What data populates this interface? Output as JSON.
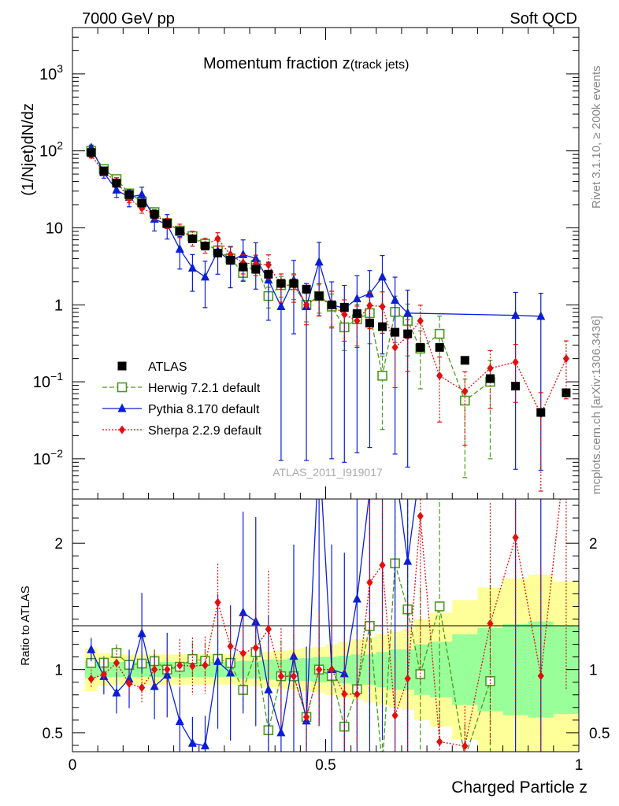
{
  "header": {
    "left": "7000 GeV pp",
    "right": "Soft QCD"
  },
  "side": {
    "rivet": "Rivet 3.1.10, ≥ 200k events",
    "mcplots": "mcplots.cern.ch [arXiv:1306.3436]"
  },
  "chart_data": {
    "type": "scatter",
    "title_main": "Momentum fraction ",
    "title_var": "z",
    "title_sub": "(track jets)",
    "analysis_id": "ATLAS_2011_I919017",
    "ylabel": "(1/Njet)dN/dz",
    "ratio_ylabel": "Ratio to ATLAS",
    "xlabel": "Charged Particle z",
    "xlim": [
      0,
      1
    ],
    "ylim_log": [
      0.003,
      4000
    ],
    "ratio_ylim": [
      0.35,
      2.35
    ],
    "x_ticks": [
      {
        "v": 0,
        "l": "0"
      },
      {
        "v": 0.5,
        "l": "0.5"
      },
      {
        "v": 1,
        "l": "1"
      }
    ],
    "y_ticks": [
      {
        "v": 0.01,
        "b": "10",
        "e": "−2"
      },
      {
        "v": 0.1,
        "b": "10",
        "e": "−1"
      },
      {
        "v": 1,
        "b": "1",
        "e": ""
      },
      {
        "v": 10,
        "b": "10",
        "e": ""
      },
      {
        "v": 100,
        "b": "10",
        "e": "2"
      },
      {
        "v": 1000,
        "b": "10",
        "e": "3"
      }
    ],
    "ratio_ticks": [
      {
        "v": 0.5,
        "l": "0.5"
      },
      {
        "v": 1,
        "l": "1"
      },
      {
        "v": 2,
        "l": "2"
      }
    ],
    "atlas": {
      "name": "ATLAS",
      "x": [
        0.037,
        0.062,
        0.087,
        0.112,
        0.137,
        0.162,
        0.187,
        0.212,
        0.237,
        0.262,
        0.287,
        0.312,
        0.337,
        0.362,
        0.387,
        0.412,
        0.437,
        0.462,
        0.487,
        0.512,
        0.537,
        0.562,
        0.587,
        0.612,
        0.637,
        0.662,
        0.687,
        0.725,
        0.775,
        0.825,
        0.875,
        0.925,
        0.975
      ],
      "y": [
        95,
        55,
        38,
        27,
        21,
        15,
        11.5,
        9,
        7.2,
        5.8,
        4.7,
        3.8,
        3.1,
        2.9,
        2.5,
        1.9,
        1.9,
        1.6,
        1.3,
        1.0,
        0.93,
        0.77,
        0.58,
        0.52,
        0.44,
        0.42,
        0.28,
        0.28,
        0.19,
        0.11,
        0.088,
        0.04,
        0.072
      ],
      "band_inner": [
        0.07,
        0.06,
        0.06,
        0.06,
        0.06,
        0.06,
        0.06,
        0.06,
        0.06,
        0.06,
        0.06,
        0.06,
        0.07,
        0.07,
        0.08,
        0.08,
        0.09,
        0.09,
        0.1,
        0.1,
        0.11,
        0.12,
        0.12,
        0.14,
        0.16,
        0.16,
        0.2,
        0.22,
        0.28,
        0.33,
        0.36,
        0.38,
        0.35
      ],
      "band_outer": [
        0.17,
        0.13,
        0.12,
        0.12,
        0.12,
        0.12,
        0.12,
        0.12,
        0.12,
        0.12,
        0.12,
        0.12,
        0.13,
        0.13,
        0.14,
        0.15,
        0.16,
        0.17,
        0.18,
        0.2,
        0.22,
        0.24,
        0.26,
        0.28,
        0.3,
        0.32,
        0.4,
        0.45,
        0.55,
        0.65,
        0.72,
        0.75,
        0.7
      ]
    },
    "series": [
      {
        "name": "Herwig 7.2.1 default",
        "color": "#4a9a1a",
        "marker": "open-square",
        "dash": "6,3",
        "x": [
          0.037,
          0.062,
          0.087,
          0.112,
          0.137,
          0.162,
          0.187,
          0.212,
          0.237,
          0.262,
          0.287,
          0.312,
          0.337,
          0.362,
          0.387,
          0.412,
          0.437,
          0.462,
          0.487,
          0.512,
          0.537,
          0.562,
          0.587,
          0.612,
          0.637,
          0.662,
          0.687,
          0.725,
          0.775,
          0.825
        ],
        "y": [
          100,
          58,
          43,
          28,
          22,
          16,
          11.5,
          9.2,
          7.8,
          6.2,
          5.1,
          4.0,
          2.6,
          3.3,
          1.3,
          1.8,
          1.8,
          1.0,
          1.3,
          0.95,
          0.51,
          0.65,
          0.78,
          0.12,
          0.81,
          0.62,
          0.27,
          0.42,
          0.057,
          0.1
        ],
        "err": [
          0.05,
          0.05,
          0.06,
          0.07,
          0.08,
          0.09,
          0.1,
          0.11,
          0.12,
          0.13,
          0.14,
          0.16,
          0.2,
          0.22,
          0.3,
          0.3,
          0.35,
          0.4,
          0.4,
          0.45,
          0.5,
          0.55,
          0.6,
          0.8,
          0.6,
          0.65,
          0.7,
          0.7,
          0.9,
          0.9
        ]
      },
      {
        "name": "Pythia 8.170 default",
        "color": "#0a1ed8",
        "marker": "triangle",
        "dash": "",
        "x": [
          0.037,
          0.062,
          0.087,
          0.112,
          0.137,
          0.162,
          0.187,
          0.212,
          0.237,
          0.262,
          0.287,
          0.312,
          0.337,
          0.362,
          0.387,
          0.412,
          0.437,
          0.462,
          0.487,
          0.512,
          0.537,
          0.562,
          0.587,
          0.612,
          0.637,
          0.662,
          0.875,
          0.925
        ],
        "y": [
          110,
          52,
          31,
          25,
          27,
          13,
          11,
          5.3,
          3.0,
          2.3,
          5.0,
          3.7,
          4.5,
          4.0,
          2.1,
          0.95,
          2.1,
          0.95,
          3.6,
          1.0,
          0.9,
          1.2,
          1.4,
          2.3,
          1.15,
          0.78,
          0.73,
          0.71
        ],
        "err": [
          0.08,
          0.15,
          0.2,
          0.25,
          0.25,
          0.3,
          0.35,
          0.45,
          0.5,
          0.6,
          0.5,
          0.55,
          0.55,
          0.6,
          0.7,
          0.99,
          0.8,
          0.99,
          0.8,
          0.99,
          0.99,
          0.99,
          0.99,
          0.9,
          0.99,
          0.99,
          0.99,
          0.99
        ]
      },
      {
        "name": "Sherpa 2.2.9 default",
        "color": "#e01010",
        "marker": "diamond",
        "dash": "2,2",
        "x": [
          0.037,
          0.062,
          0.087,
          0.112,
          0.137,
          0.162,
          0.187,
          0.212,
          0.237,
          0.262,
          0.287,
          0.312,
          0.337,
          0.362,
          0.387,
          0.412,
          0.437,
          0.462,
          0.487,
          0.512,
          0.537,
          0.562,
          0.587,
          0.612,
          0.637,
          0.662,
          0.687,
          0.725,
          0.775,
          0.825,
          0.875,
          0.925,
          0.975
        ],
        "y": [
          88,
          53,
          40,
          24,
          18,
          15,
          11.5,
          9.3,
          7.4,
          6.0,
          7.2,
          4.5,
          3.5,
          3.4,
          3.3,
          1.8,
          1.8,
          1.0,
          1.3,
          1.0,
          0.75,
          0.62,
          0.98,
          0.95,
          0.28,
          0.39,
          0.62,
          0.12,
          0.075,
          0.15,
          0.18,
          0.038,
          0.2
        ],
        "err": [
          0.08,
          0.1,
          0.12,
          0.12,
          0.14,
          0.15,
          0.15,
          0.2,
          0.22,
          0.22,
          0.2,
          0.25,
          0.28,
          0.3,
          0.35,
          0.4,
          0.4,
          0.45,
          0.45,
          0.5,
          0.55,
          0.55,
          0.5,
          0.55,
          0.7,
          0.65,
          0.6,
          0.75,
          0.8,
          0.7,
          0.7,
          0.9,
          0.7
        ]
      }
    ]
  }
}
